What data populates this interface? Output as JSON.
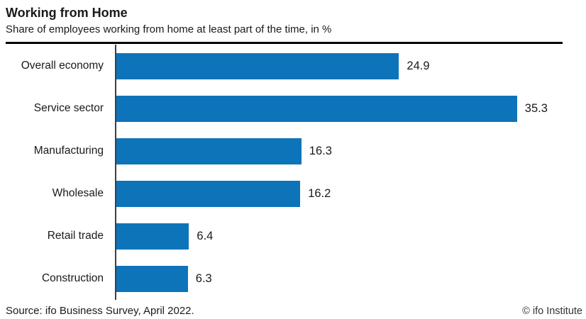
{
  "header": {
    "title": "Working from Home",
    "subtitle": "Share of employees working from home at least part of the time, in %"
  },
  "chart_data": {
    "type": "bar",
    "orientation": "horizontal",
    "title": "Working from Home",
    "subtitle": "Share of employees working from home at least part of the time, in %",
    "categories": [
      "Overall economy",
      "Service sector",
      "Manufacturing",
      "Wholesale",
      "Retail trade",
      "Construction"
    ],
    "values": [
      24.9,
      35.3,
      16.3,
      16.2,
      6.4,
      6.3
    ],
    "value_labels": [
      "24.9",
      "35.3",
      "16.3",
      "16.2",
      "6.4",
      "6.3"
    ],
    "xlabel": "",
    "ylabel": "",
    "xlim": [
      0,
      40
    ],
    "grid": false,
    "legend": "none",
    "bar_color": "#0d74ba"
  },
  "footer": {
    "source": "Source: ifo Business Survey, April 2022.",
    "copyright": "© ifo Institute"
  },
  "colors": {
    "bar": "#0d74ba",
    "axis": "#3f3f3f",
    "header_rule": "#000000",
    "footer_rule": "#b7cbd7",
    "text": "#1a1a1a"
  }
}
